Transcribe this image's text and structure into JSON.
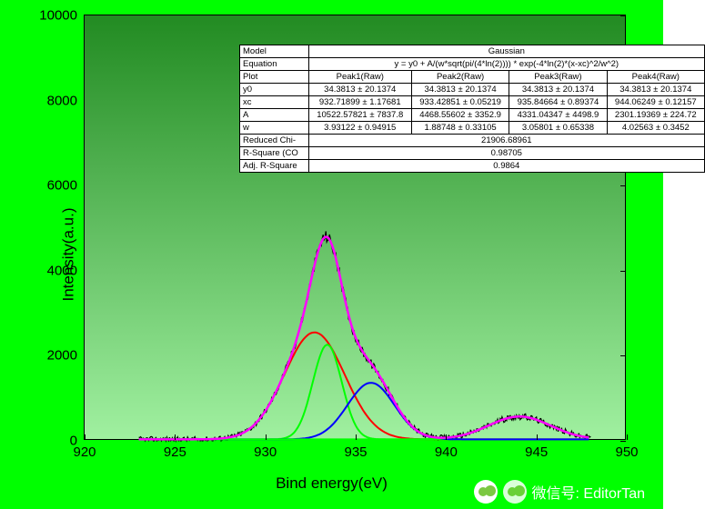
{
  "chart": {
    "type": "line",
    "xlabel": "Bind energy(eV)",
    "ylabel": "Intensity(a.u.)",
    "label_fontsize": 17,
    "tick_fontsize": 15,
    "xlim": [
      920,
      950
    ],
    "ylim": [
      0,
      10000
    ],
    "xtick_step": 5,
    "ytick_step": 2000,
    "xticks": [
      920,
      925,
      930,
      935,
      940,
      945,
      950
    ],
    "yticks": [
      0,
      2000,
      4000,
      6000,
      8000,
      10000
    ],
    "background_gradient": [
      "#228b22",
      "#a0f0a0"
    ],
    "page_background": "#00ff00",
    "border_color": "#000000",
    "baseline": 34.38,
    "peaks": [
      {
        "name": "Peak1",
        "xc": 932.719,
        "A": 10522.578,
        "w": 3.931,
        "color": "#ff0000",
        "line_width": 2
      },
      {
        "name": "Peak2",
        "xc": 933.429,
        "A": 4468.556,
        "w": 1.887,
        "color": "#00ff00",
        "line_width": 2
      },
      {
        "name": "Peak3",
        "xc": 935.847,
        "A": 4331.043,
        "w": 3.058,
        "color": "#0000ff",
        "line_width": 2
      },
      {
        "name": "Peak4",
        "xc": 944.062,
        "A": 2301.194,
        "w": 4.026,
        "color": "#00ff00",
        "line_width": 2
      }
    ],
    "sum_curve_color": "#ff00ff",
    "sum_curve_width": 2.5,
    "raw_color": "#000000",
    "raw_width": 1.2,
    "raw_x_range": [
      923,
      948
    ],
    "raw_noise_amp": 130
  },
  "fit_table": {
    "font_size": 9.5,
    "background": "#ffffff",
    "border_color": "#000000",
    "rows": [
      {
        "label": "Model",
        "cells": [
          "Gaussian"
        ],
        "span": 4
      },
      {
        "label": "Equation",
        "cells": [
          "y = y0 + A/(w*sqrt(pi/(4*ln(2)))) * exp(-4*ln(2)*(x-xc)^2/w^2)"
        ],
        "span": 4
      },
      {
        "label": "Plot",
        "cells": [
          "Peak1(Raw)",
          "Peak2(Raw)",
          "Peak3(Raw)",
          "Peak4(Raw)"
        ]
      },
      {
        "label": "y0",
        "cells": [
          "34.3813 ± 20.1374",
          "34.3813 ± 20.1374",
          "34.3813 ± 20.1374",
          "34.3813 ± 20.1374"
        ]
      },
      {
        "label": "xc",
        "cells": [
          "932.71899 ± 1.17681",
          "933.42851 ± 0.05219",
          "935.84664 ± 0.89374",
          "944.06249 ± 0.12157"
        ]
      },
      {
        "label": "A",
        "cells": [
          "10522.57821 ± 7837.8",
          "4468.55602 ± 3352.9",
          "4331.04347 ± 4498.9",
          "2301.19369 ± 224.72"
        ]
      },
      {
        "label": "w",
        "cells": [
          "3.93122 ± 0.94915",
          "1.88748 ± 0.33105",
          "3.05801 ± 0.65338",
          "4.02563 ± 0.3452"
        ]
      },
      {
        "label": "Reduced Chi-",
        "cells": [
          "21906.68961"
        ],
        "span": 4
      },
      {
        "label": "R-Square (CO",
        "cells": [
          "0.98705"
        ],
        "span": 4
      },
      {
        "label": "Adj. R-Square",
        "cells": [
          "0.9864"
        ],
        "span": 4
      }
    ]
  },
  "watermark": {
    "text": "微信号: EditorTan"
  }
}
